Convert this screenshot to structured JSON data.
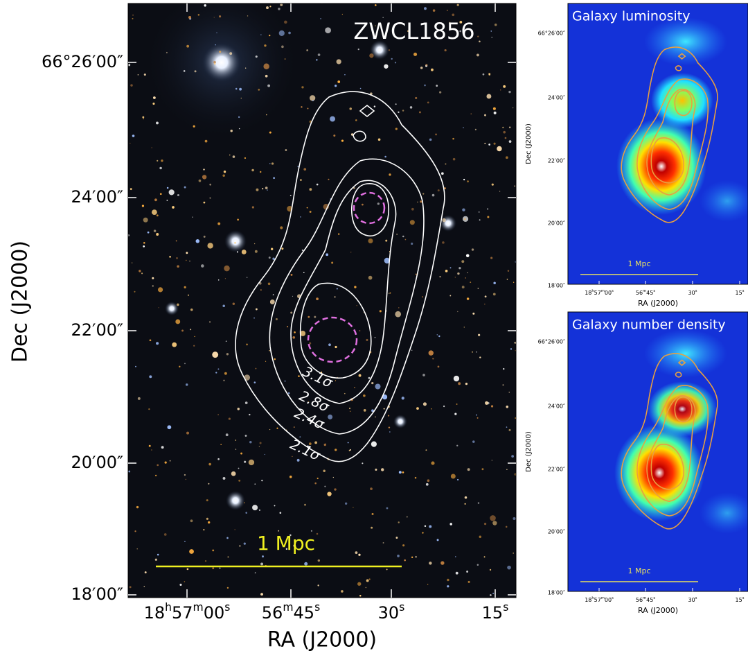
{
  "main_panel": {
    "title": "ZWCL1856",
    "y_label": "Dec (J2000)",
    "x_label": "RA (J2000)",
    "y_ticks": [
      "66°26′00″",
      "24′00″",
      "22′00″",
      "20′00″",
      "18′00″"
    ],
    "x_ticks": [
      [
        "18",
        "h",
        "57",
        "m",
        "00",
        "s"
      ],
      [
        "56",
        "m",
        "45",
        "s"
      ],
      [
        "30",
        "s"
      ],
      [
        "15",
        "s"
      ]
    ],
    "contour_labels": [
      "3.1σ",
      "2.8σ",
      "2.4σ",
      "2.1σ"
    ],
    "scale_bar": "1 Mpc"
  },
  "side_panels": [
    {
      "title": "Galaxy luminosity",
      "y_label": "Dec (J2000)",
      "x_label": "RA (J2000)",
      "y_ticks": [
        "66°26′00″",
        "24′00″",
        "22′00″",
        "20′00″",
        "18′00″"
      ],
      "x_ticks": [
        [
          "18",
          "h",
          "57",
          "m",
          "00",
          "s"
        ],
        [
          "56",
          "m",
          "45",
          "s"
        ],
        [
          "30",
          "s"
        ],
        [
          "15",
          "s"
        ]
      ],
      "scale_bar": "1 Mpc"
    },
    {
      "title": "Galaxy number density",
      "y_label": "Dec (J2000)",
      "x_label": "RA (J2000)",
      "y_ticks": [
        "66°26′00″",
        "24′00″",
        "22′00″",
        "20′00″",
        "18′00″"
      ],
      "x_ticks": [
        [
          "18",
          "h",
          "57",
          "m",
          "00",
          "s"
        ],
        [
          "56",
          "m",
          "45",
          "s"
        ],
        [
          "30",
          "s"
        ],
        [
          "15",
          "s"
        ]
      ],
      "scale_bar": "1 Mpc"
    }
  ]
}
